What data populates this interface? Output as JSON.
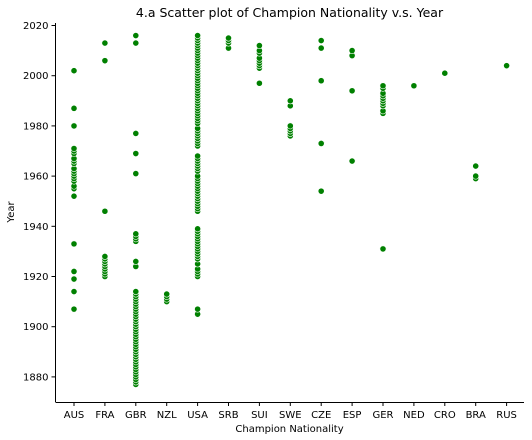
{
  "chart_data": {
    "type": "scatter",
    "title": "4.a Scatter plot of Champion Nationality v.s. Year",
    "xlabel": "Champion Nationality",
    "ylabel": "Year",
    "categories": [
      "AUS",
      "FRA",
      "GBR",
      "NZL",
      "USA",
      "SRB",
      "SUI",
      "SWE",
      "CZE",
      "ESP",
      "GER",
      "NED",
      "CRO",
      "BRA",
      "RUS"
    ],
    "ylim": [
      1870,
      2021
    ],
    "yticks": [
      1880,
      1900,
      1920,
      1940,
      1960,
      1980,
      2000,
      2020
    ],
    "grid": false,
    "marker_color": "#008000",
    "points": {
      "AUS": [
        1907,
        1914,
        1919,
        1922,
        1933,
        1952,
        1955,
        1956,
        1958,
        1959,
        1960,
        1961,
        1962,
        1963,
        1965,
        1966,
        1967,
        1969,
        1970,
        1971,
        1980,
        1987,
        2002
      ],
      "FRA": [
        1920,
        1921,
        1922,
        1923,
        1924,
        1925,
        1926,
        1927,
        1928,
        1946,
        2006,
        2013
      ],
      "GBR": [
        1877,
        1878,
        1879,
        1880,
        1881,
        1882,
        1883,
        1884,
        1885,
        1886,
        1887,
        1888,
        1889,
        1890,
        1891,
        1892,
        1893,
        1894,
        1895,
        1896,
        1897,
        1898,
        1899,
        1900,
        1901,
        1902,
        1903,
        1904,
        1905,
        1906,
        1907,
        1908,
        1909,
        1910,
        1911,
        1912,
        1913,
        1914,
        1924,
        1926,
        1934,
        1935,
        1936,
        1937,
        1961,
        1969,
        1977,
        2013,
        2016
      ],
      "NZL": [
        1910,
        1911,
        1912,
        1913
      ],
      "USA": [
        1905,
        1907,
        1920,
        1921,
        1922,
        1923,
        1925,
        1927,
        1928,
        1929,
        1930,
        1931,
        1932,
        1933,
        1934,
        1935,
        1936,
        1937,
        1938,
        1939,
        1946,
        1947,
        1948,
        1949,
        1950,
        1951,
        1952,
        1953,
        1954,
        1955,
        1956,
        1957,
        1958,
        1959,
        1960,
        1962,
        1963,
        1964,
        1965,
        1966,
        1967,
        1968,
        1972,
        1973,
        1974,
        1975,
        1976,
        1977,
        1978,
        1979,
        1981,
        1982,
        1983,
        1984,
        1985,
        1986,
        1987,
        1988,
        1989,
        1990,
        1991,
        1992,
        1993,
        1994,
        1995,
        1996,
        1997,
        1998,
        1999,
        2000,
        2001,
        2002,
        2003,
        2004,
        2005,
        2006,
        2007,
        2008,
        2009,
        2010,
        2011,
        2012,
        2013,
        2014,
        2015,
        2016
      ],
      "SRB": [
        2011,
        2013,
        2014,
        2015
      ],
      "SUI": [
        1997,
        2003,
        2004,
        2005,
        2006,
        2007,
        2009,
        2010,
        2012
      ],
      "SWE": [
        1976,
        1977,
        1978,
        1979,
        1980,
        1988,
        1990
      ],
      "CZE": [
        1954,
        1973,
        1998,
        2011,
        2014
      ],
      "ESP": [
        1966,
        1994,
        2008,
        2010
      ],
      "GER": [
        1931,
        1985,
        1986,
        1988,
        1989,
        1990,
        1991,
        1992,
        1993,
        1995,
        1996
      ],
      "NED": [
        1996
      ],
      "CRO": [
        2001
      ],
      "BRA": [
        1959,
        1960,
        1964
      ],
      "RUS": [
        2004
      ]
    }
  }
}
